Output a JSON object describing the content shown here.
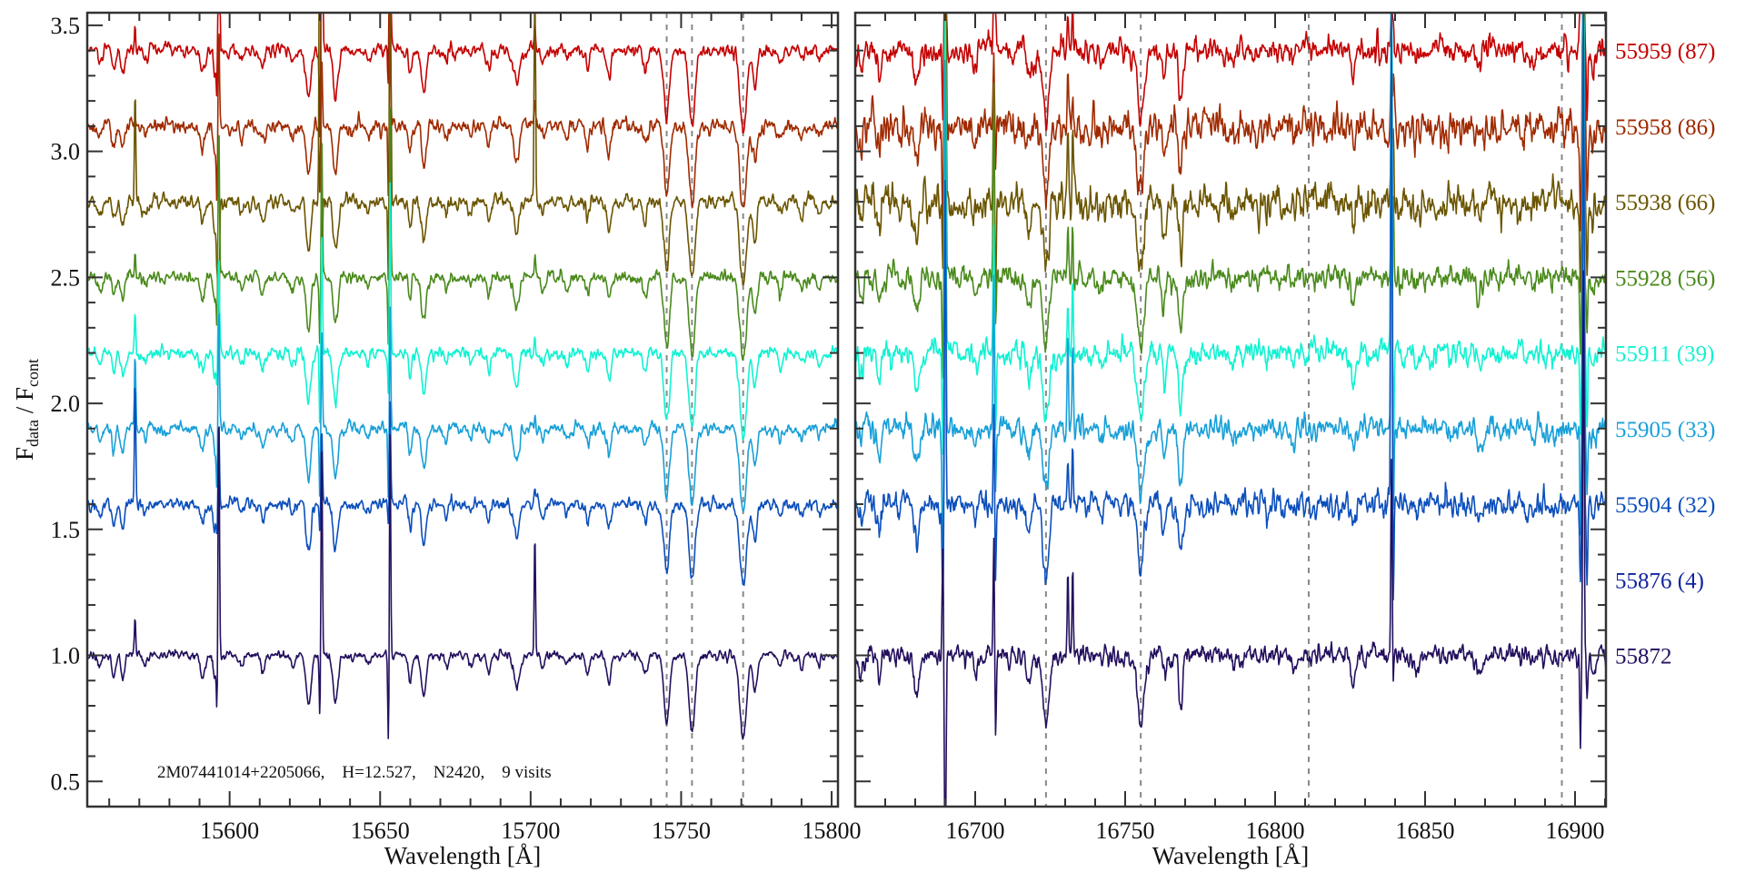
{
  "chart_data": {
    "type": "line",
    "title": "",
    "ylabel": {
      "main": "F",
      "num_sub": "data",
      "sep": " / ",
      "den_main": "F",
      "den_sub": "cont"
    },
    "ylim": [
      0.4,
      3.55
    ],
    "yticks": [
      "0.5",
      "1.0",
      "1.5",
      "2.0",
      "2.5",
      "3.0",
      "3.5"
    ],
    "grid": false,
    "annotation": "2M07441014+2205066,    H=12.527,    N2420,    9 visits",
    "panels": [
      {
        "xlabel": "Wavelength [Å]",
        "xlim": [
          15552.7,
          15802.1
        ],
        "xticks": [
          "15600",
          "15650",
          "15700",
          "15750",
          "15800"
        ],
        "marker_lines": [
          15745.2,
          15753.6,
          15770.6
        ],
        "stellar_lines": [
          [
            15557,
            0.05,
            0.7
          ],
          [
            15561.5,
            0.08,
            0.6
          ],
          [
            15564.5,
            0.1,
            0.6
          ],
          [
            15572,
            0.04,
            0.6
          ],
          [
            15591,
            0.08,
            0.8
          ],
          [
            15595,
            0.1,
            0.4
          ],
          [
            15604,
            0.04,
            0.6
          ],
          [
            15611,
            0.06,
            0.7
          ],
          [
            15621,
            0.05,
            0.6
          ],
          [
            15626.2,
            0.2,
            0.8
          ],
          [
            15635.2,
            0.19,
            0.8
          ],
          [
            15646,
            0.04,
            0.6
          ],
          [
            15660,
            0.1,
            0.5
          ],
          [
            15664.5,
            0.16,
            0.8
          ],
          [
            15672,
            0.05,
            0.6
          ],
          [
            15680,
            0.04,
            0.5
          ],
          [
            15686,
            0.07,
            0.6
          ],
          [
            15695.3,
            0.13,
            0.9
          ],
          [
            15704,
            0.05,
            0.6
          ],
          [
            15712,
            0.04,
            0.6
          ],
          [
            15719,
            0.07,
            0.6
          ],
          [
            15726,
            0.1,
            0.7
          ],
          [
            15738,
            0.08,
            0.7
          ],
          [
            15745.2,
            0.27,
            0.9
          ],
          [
            15753.6,
            0.3,
            1.0
          ],
          [
            15770.6,
            0.33,
            1.1
          ],
          [
            15774.5,
            0.15,
            0.7
          ],
          [
            15783,
            0.05,
            0.6
          ],
          [
            15790,
            0.05,
            0.6
          ],
          [
            15796,
            0.04,
            0.5
          ]
        ],
        "sky_lines": [
          15568.6,
          15595.8,
          15596.4,
          15630.0,
          15630.6,
          15652.8,
          15653.3,
          15701.4
        ]
      },
      {
        "xlabel": "Wavelength [Å]",
        "xlim": [
          16660.0,
          16910.3
        ],
        "xticks": [
          "16700",
          "16750",
          "16800",
          "16850",
          "16900"
        ],
        "marker_lines": [
          16723.6,
          16755.2,
          16811.2,
          16895.6
        ],
        "stellar_lines": [
          [
            16662,
            0.08,
            0.6
          ],
          [
            16668,
            0.1,
            0.6
          ],
          [
            16680.5,
            0.15,
            0.8
          ],
          [
            16700,
            0.06,
            0.6
          ],
          [
            16718,
            0.1,
            0.8
          ],
          [
            16723.6,
            0.27,
            1.0
          ],
          [
            16742,
            0.05,
            0.6
          ],
          [
            16755.2,
            0.27,
            1.1
          ],
          [
            16763,
            0.1,
            0.6
          ],
          [
            16768.5,
            0.2,
            0.7
          ],
          [
            16786,
            0.05,
            0.6
          ],
          [
            16806,
            0.04,
            0.6
          ],
          [
            16826,
            0.1,
            0.7
          ],
          [
            16847,
            0.04,
            0.6
          ],
          [
            16868,
            0.07,
            0.8
          ],
          [
            16886,
            0.05,
            0.6
          ],
          [
            16906,
            0.06,
            0.6
          ]
        ],
        "sky_lines": [
          16689.2,
          16690.0,
          16706.2,
          16706.8,
          16730.9,
          16732.5,
          16838.8,
          16839.4,
          16901.8,
          16902.8,
          16904.0
        ]
      }
    ],
    "series": [
      {
        "name": "55959 (87)",
        "offset": 3.4,
        "color": "#c40000",
        "plotted": true,
        "noise": [
          0.013,
          0.024
        ],
        "sky_amp": [
          [
            0.1,
            -0.2,
            2.0,
            -0.4,
            2.0,
            -0.2,
            2.0,
            0.1
          ],
          [
            -0.3,
            2.5,
            0.3,
            0.2,
            0.1,
            0.2,
            0.2,
            0.1,
            0.5,
            2.5,
            -0.3
          ]
        ]
      },
      {
        "name": "55958 (86)",
        "offset": 3.1,
        "color": "#a02a00",
        "plotted": true,
        "noise": [
          0.015,
          0.034
        ],
        "sky_amp": [
          [
            0.05,
            -0.3,
            0.4,
            -0.3,
            0.3,
            -0.3,
            0.4,
            0.1
          ],
          [
            -0.4,
            2.0,
            0.3,
            -0.2,
            0.2,
            0.1,
            0.2,
            0.2,
            -0.4,
            2.0,
            -0.3
          ]
        ]
      },
      {
        "name": "55938 (66)",
        "offset": 2.8,
        "color": "#6b5500",
        "plotted": true,
        "noise": [
          0.014,
          0.034
        ],
        "sky_amp": [
          [
            0.45,
            -0.25,
            -0.6,
            2.2,
            -0.3,
            -0.4,
            2.0,
            1.2
          ],
          [
            -0.3,
            2.0,
            0.4,
            -0.4,
            0.3,
            0.3,
            0.3,
            0.3,
            -0.3,
            2.0,
            -0.3
          ]
        ]
      },
      {
        "name": "55928 (56)",
        "offset": 2.5,
        "color": "#4a8a1c",
        "plotted": true,
        "noise": [
          0.012,
          0.022
        ],
        "sky_amp": [
          [
            0.1,
            -0.2,
            0.6,
            -0.3,
            0.6,
            -0.3,
            0.7,
            0.1
          ],
          [
            -0.4,
            2.0,
            0.8,
            -0.2,
            0.2,
            0.2,
            0.3,
            0.3,
            -0.3,
            2.0,
            -0.2
          ]
        ]
      },
      {
        "name": "55911 (39)",
        "offset": 2.2,
        "color": "#12f2d2",
        "plotted": true,
        "noise": [
          0.012,
          0.024
        ],
        "sky_amp": [
          [
            0.15,
            -0.1,
            0.4,
            -0.3,
            0.5,
            -0.2,
            0.7,
            0.05
          ],
          [
            -0.4,
            1.5,
            0.5,
            -0.3,
            0.2,
            0.3,
            2.0,
            -0.5,
            -0.3,
            2.0,
            -0.3
          ]
        ]
      },
      {
        "name": "55905 (33)",
        "offset": 1.9,
        "color": "#18a0d8",
        "plotted": true,
        "noise": [
          0.012,
          0.024
        ],
        "sky_amp": [
          [
            0.3,
            -0.25,
            0.5,
            -0.3,
            0.4,
            -0.3,
            0.5,
            0.05
          ],
          [
            -0.6,
            1.5,
            0.6,
            -0.3,
            0.4,
            0.3,
            2.0,
            -0.4,
            -0.4,
            2.0,
            -0.3
          ]
        ]
      },
      {
        "name": "55904 (32)",
        "offset": 1.6,
        "color": "#0c4fbc",
        "plotted": true,
        "noise": [
          0.012,
          0.024
        ],
        "sky_amp": [
          [
            0.5,
            -0.1,
            0.3,
            -0.1,
            0.3,
            -0.1,
            0.4,
            0.05
          ],
          [
            -0.4,
            1.3,
            0.4,
            -0.3,
            0.2,
            0.2,
            2.0,
            -0.4,
            -0.3,
            2.0,
            -0.3
          ]
        ]
      },
      {
        "name": "55876 (4)",
        "offset": 1.3,
        "color": "#12249e",
        "plotted": false,
        "noise": [
          0.0,
          0.0
        ],
        "sky_amp": [
          [
            0,
            0,
            0,
            0,
            0,
            0,
            0,
            0
          ],
          [
            0,
            0,
            0,
            0,
            0,
            0,
            0,
            0,
            0,
            0,
            0
          ]
        ]
      },
      {
        "name": "55872",
        "offset": 1.0,
        "color": "#24105e",
        "plotted": true,
        "noise": [
          0.009,
          0.02
        ],
        "sky_amp": [
          [
            0.17,
            -0.22,
            1.0,
            -0.25,
            0.9,
            -0.38,
            0.9,
            0.48
          ],
          [
            0.4,
            -1.6,
            0.45,
            -0.3,
            0.35,
            0.35,
            0.8,
            -0.1,
            -0.35,
            1.5,
            -0.2
          ]
        ]
      }
    ]
  }
}
